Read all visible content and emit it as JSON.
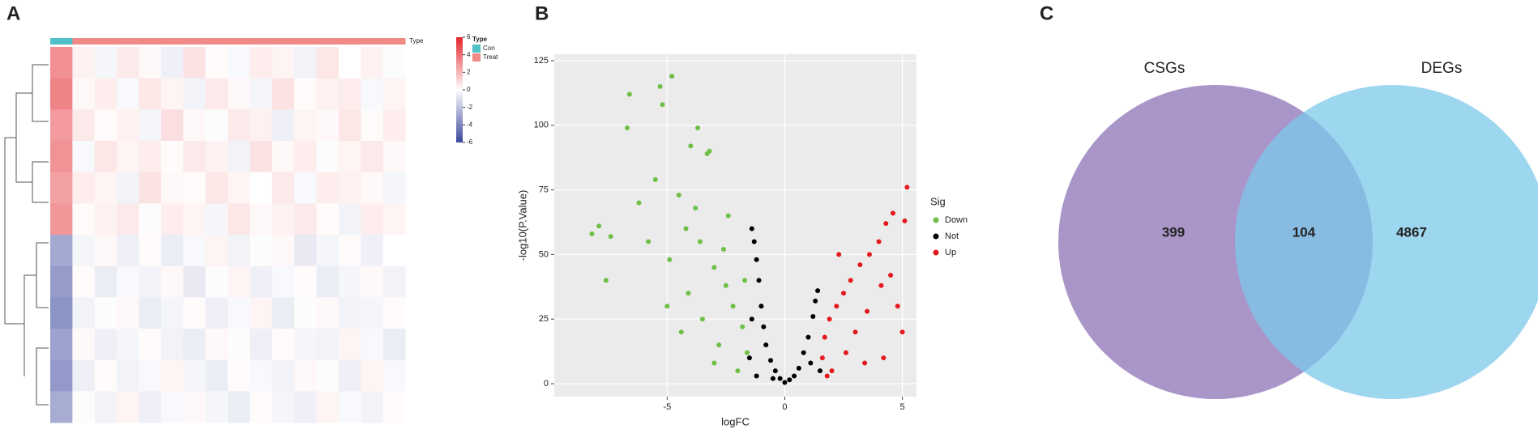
{
  "chart_data": [
    {
      "type": "heatmap",
      "panel": "A",
      "legend_title": "Type",
      "type_levels": [
        {
          "name": "Con",
          "color": "#4fc0c8"
        },
        {
          "name": "Treat",
          "color": "#f08a86"
        }
      ],
      "sample_types": [
        0,
        1,
        1,
        1,
        1,
        1,
        1,
        1,
        1,
        1,
        1,
        1,
        1,
        1,
        1,
        1
      ],
      "clim": [
        -6,
        6
      ],
      "cticks": [
        6,
        4,
        2,
        0,
        -2,
        -4,
        -6
      ],
      "low_color": "#3a469c",
      "mid_color": "#ffffff",
      "high_color": "#e3262c",
      "matrix": [
        [
          3.1,
          0.4,
          -0.3,
          0.6,
          0.2,
          -0.5,
          0.8,
          0.1,
          -0.2,
          0.5,
          0.3,
          -0.4,
          0.7,
          0.0,
          0.4,
          -0.1
        ],
        [
          3.4,
          0.2,
          0.5,
          -0.2,
          0.7,
          0.3,
          -0.4,
          0.6,
          0.2,
          -0.3,
          0.8,
          0.1,
          0.4,
          0.5,
          -0.2,
          0.3
        ],
        [
          2.8,
          0.6,
          0.1,
          0.4,
          -0.3,
          0.9,
          0.2,
          -0.1,
          0.6,
          0.4,
          -0.5,
          0.3,
          0.2,
          0.7,
          0.1,
          0.5
        ],
        [
          3.0,
          -0.2,
          0.7,
          0.3,
          0.5,
          0.1,
          0.6,
          0.4,
          -0.4,
          0.8,
          0.2,
          0.5,
          -0.1,
          0.3,
          0.6,
          0.2
        ],
        [
          2.6,
          0.5,
          0.3,
          -0.4,
          0.8,
          0.2,
          0.1,
          0.7,
          0.3,
          0.0,
          0.6,
          -0.2,
          0.5,
          0.4,
          0.2,
          -0.3
        ],
        [
          2.9,
          0.1,
          0.4,
          0.6,
          -0.1,
          0.5,
          0.3,
          -0.3,
          0.7,
          0.2,
          0.4,
          0.6,
          0.1,
          -0.4,
          0.5,
          0.3
        ],
        [
          -2.8,
          -0.3,
          0.2,
          -0.5,
          0.1,
          -0.6,
          -0.2,
          0.3,
          -0.4,
          -0.1,
          0.2,
          -0.7,
          -0.3,
          0.1,
          -0.5,
          0.0
        ],
        [
          -3.2,
          0.1,
          -0.6,
          -0.2,
          -0.4,
          0.2,
          -0.7,
          -0.1,
          0.3,
          -0.5,
          -0.2,
          0.1,
          -0.6,
          -0.3,
          0.2,
          -0.4
        ],
        [
          -3.5,
          -0.4,
          -0.1,
          0.2,
          -0.6,
          -0.3,
          0.1,
          -0.5,
          -0.2,
          0.3,
          -0.6,
          -0.1,
          0.2,
          -0.4,
          -0.3,
          0.1
        ],
        [
          -3.0,
          0.2,
          -0.5,
          -0.3,
          0.1,
          -0.4,
          -0.6,
          0.2,
          -0.1,
          -0.5,
          0.1,
          -0.3,
          -0.4,
          0.3,
          -0.2,
          -0.6
        ],
        [
          -3.3,
          -0.5,
          0.1,
          -0.4,
          -0.2,
          0.3,
          -0.3,
          -0.6,
          0.1,
          -0.2,
          -0.4,
          0.2,
          -0.1,
          -0.5,
          0.3,
          -0.2
        ],
        [
          -2.7,
          -0.1,
          -0.4,
          0.3,
          -0.5,
          -0.2,
          0.2,
          -0.3,
          -0.6,
          0.1,
          -0.3,
          -0.5,
          0.3,
          -0.2,
          -0.4,
          0.1
        ]
      ]
    },
    {
      "type": "scatter",
      "panel": "B",
      "xlabel": "logFC",
      "ylabel": "-log10(P.Value)",
      "legend_title": "Sig",
      "xlim": [
        -9.8,
        5.6
      ],
      "ylim": [
        -5,
        127.5
      ],
      "xticks": [
        -5,
        0,
        5
      ],
      "yticks": [
        0,
        25,
        50,
        75,
        100,
        125
      ],
      "grid": true,
      "series": [
        {
          "name": "Down",
          "color": "#6dbf45",
          "x": [
            -8.2,
            -7.9,
            -7.6,
            -7.4,
            -6.6,
            -6.7,
            -5.3,
            -5.2,
            -4.8,
            -3.7,
            -4.0,
            -3.3,
            -3.2,
            -5.5,
            -4.5,
            -6.2,
            -5.8,
            -4.9,
            -4.2,
            -3.6,
            -3.0,
            -2.5,
            -2.2,
            -1.8,
            -1.6,
            -2.0,
            -2.8,
            -3.5,
            -4.1,
            -5.0,
            -4.4,
            -3.0,
            -2.4,
            -3.8,
            -1.7,
            -2.6
          ],
          "y": [
            58,
            61,
            40,
            57,
            112,
            99,
            115,
            108,
            119,
            99,
            92,
            89,
            90,
            79,
            73,
            70,
            55,
            48,
            60,
            55,
            45,
            38,
            30,
            22,
            12,
            5,
            15,
            25,
            35,
            30,
            20,
            8,
            65,
            68,
            40,
            52
          ]
        },
        {
          "name": "Not",
          "color": "#000000",
          "x": [
            -1.4,
            -1.3,
            -1.2,
            -1.1,
            -1.0,
            -0.9,
            -0.8,
            -0.6,
            -0.4,
            -0.2,
            0,
            0.2,
            0.4,
            0.6,
            0.8,
            1.0,
            1.2,
            1.3,
            1.4,
            -1.5,
            -1.4,
            1.5,
            -1.2,
            1.1,
            -0.5
          ],
          "y": [
            60,
            55,
            48,
            40,
            30,
            22,
            15,
            9,
            5,
            2,
            0.5,
            1.5,
            3,
            6,
            12,
            18,
            26,
            32,
            36,
            10,
            25,
            5,
            3,
            8,
            2
          ]
        },
        {
          "name": "Up",
          "color": "#e4191c",
          "x": [
            5.2,
            5.1,
            4.6,
            4.3,
            4.0,
            3.6,
            3.2,
            2.8,
            2.5,
            2.2,
            1.9,
            1.7,
            1.6,
            2.0,
            2.6,
            3.0,
            3.5,
            4.1,
            4.5,
            4.8,
            5.0,
            4.2,
            3.4,
            2.3,
            1.8
          ],
          "y": [
            76,
            63,
            66,
            62,
            55,
            50,
            46,
            40,
            35,
            30,
            25,
            18,
            10,
            5,
            12,
            20,
            28,
            38,
            42,
            30,
            20,
            10,
            8,
            50,
            3
          ]
        }
      ]
    },
    {
      "type": "venn",
      "panel": "C",
      "sets": [
        {
          "name": "CSGs",
          "color": "#9b83bf"
        },
        {
          "name": "DEGs",
          "color": "#7cc8ea"
        }
      ],
      "values": [
        399,
        104,
        4867
      ]
    }
  ]
}
